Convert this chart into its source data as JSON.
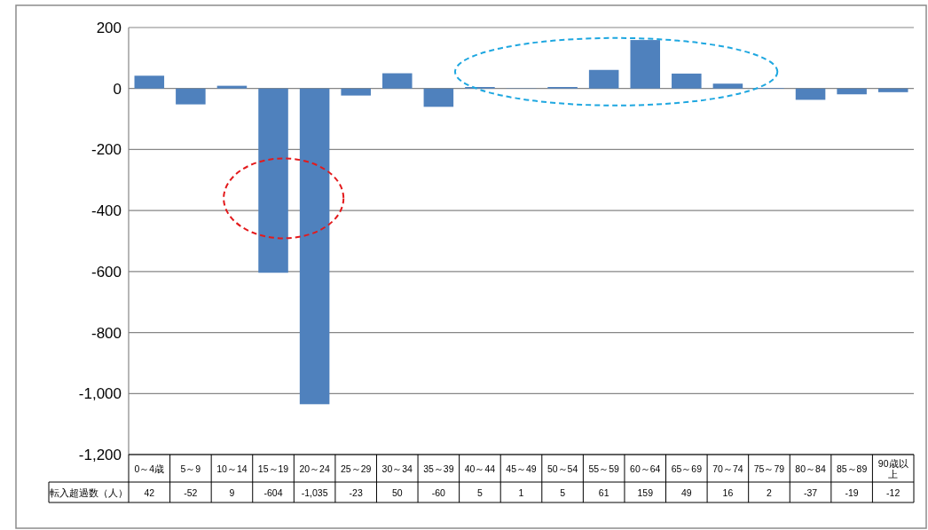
{
  "chart_data": {
    "type": "bar",
    "categories": [
      "0～4歳",
      "5～9",
      "10～14",
      "15～19",
      "20～24",
      "25～29",
      "30～34",
      "35～39",
      "40～44",
      "45～49",
      "50～54",
      "55～59",
      "60～64",
      "65～69",
      "70～74",
      "75～79",
      "80～84",
      "85～89",
      "90歳以上"
    ],
    "series": [
      {
        "name": "転入超過数（人）",
        "color": "#4f81bd",
        "values": [
          42,
          -52,
          9,
          -604,
          -1035,
          -23,
          50,
          -60,
          5,
          1,
          5,
          61,
          159,
          49,
          16,
          2,
          -37,
          -19,
          -12
        ],
        "value_labels": [
          "42",
          "-52",
          "9",
          "-604",
          "-1,035",
          "-23",
          "50",
          "-60",
          "5",
          "1",
          "5",
          "61",
          "159",
          "49",
          "16",
          "2",
          "-37",
          "-19",
          "-12"
        ]
      }
    ],
    "ylim": [
      -1200,
      200
    ],
    "yticks": [
      {
        "value": -1200,
        "label": "-1,200"
      },
      {
        "value": -1000,
        "label": "-1,000"
      },
      -800,
      -600,
      -400,
      -200,
      0,
      200
    ],
    "grid": "y"
  }
}
